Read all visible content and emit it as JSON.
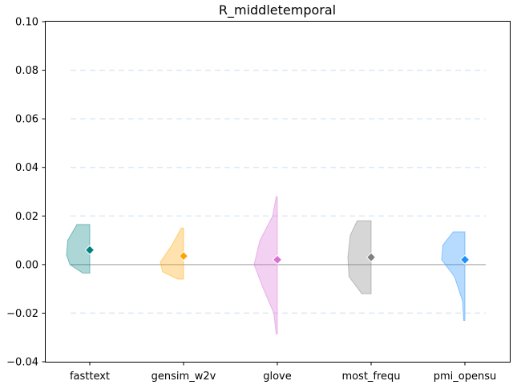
{
  "chart_data": {
    "type": "violin",
    "title": "R_middletemporal",
    "xlabel": "",
    "ylabel": "",
    "ylim": [
      -0.04,
      0.1
    ],
    "yticks": [
      -0.04,
      -0.02,
      0.0,
      0.02,
      0.04,
      0.06,
      0.08,
      0.1
    ],
    "ytick_labels": [
      "−0.04",
      "−0.02",
      "0.00",
      "0.02",
      "0.04",
      "0.06",
      "0.08",
      "0.10"
    ],
    "grid": "horizontal dashed",
    "reference_line_y": 0.0,
    "categories": [
      "fasttext",
      "gensim_w2v",
      "glove",
      "most_frequ",
      "pmi_opensu"
    ],
    "series": [
      {
        "category": "fasttext",
        "color": "#008080",
        "mean": 0.006,
        "min": -0.0035,
        "max": 0.0165,
        "density": [
          [
            -0.0035,
            0.3
          ],
          [
            0.0,
            0.85
          ],
          [
            0.004,
            1.0
          ],
          [
            0.01,
            0.95
          ],
          [
            0.0165,
            0.55
          ]
        ]
      },
      {
        "category": "gensim_w2v",
        "color": "#FFA500",
        "mean": 0.0035,
        "min": -0.006,
        "max": 0.015,
        "density": [
          [
            -0.006,
            0.25
          ],
          [
            -0.003,
            0.9
          ],
          [
            0.001,
            1.0
          ],
          [
            0.008,
            0.5
          ],
          [
            0.015,
            0.1
          ]
        ]
      },
      {
        "category": "glove",
        "color": "#DA70D6",
        "mean": 0.002,
        "min": -0.0285,
        "max": 0.028,
        "density": [
          [
            -0.0285,
            0.05
          ],
          [
            -0.02,
            0.15
          ],
          [
            -0.01,
            0.6
          ],
          [
            0.0,
            1.0
          ],
          [
            0.01,
            0.75
          ],
          [
            0.02,
            0.2
          ],
          [
            0.028,
            0.05
          ]
        ]
      },
      {
        "category": "most_frequ",
        "color": "#808080",
        "mean": 0.003,
        "min": -0.012,
        "max": 0.018,
        "density": [
          [
            -0.012,
            0.4
          ],
          [
            -0.005,
            0.95
          ],
          [
            0.003,
            1.0
          ],
          [
            0.012,
            0.9
          ],
          [
            0.018,
            0.6
          ]
        ]
      },
      {
        "category": "pmi_opensu",
        "color": "#1E90FF",
        "mean": 0.002,
        "min": -0.023,
        "max": 0.0135,
        "density": [
          [
            -0.023,
            0.05
          ],
          [
            -0.015,
            0.1
          ],
          [
            -0.005,
            0.45
          ],
          [
            0.002,
            1.0
          ],
          [
            0.008,
            0.95
          ],
          [
            0.0135,
            0.5
          ]
        ]
      }
    ]
  }
}
